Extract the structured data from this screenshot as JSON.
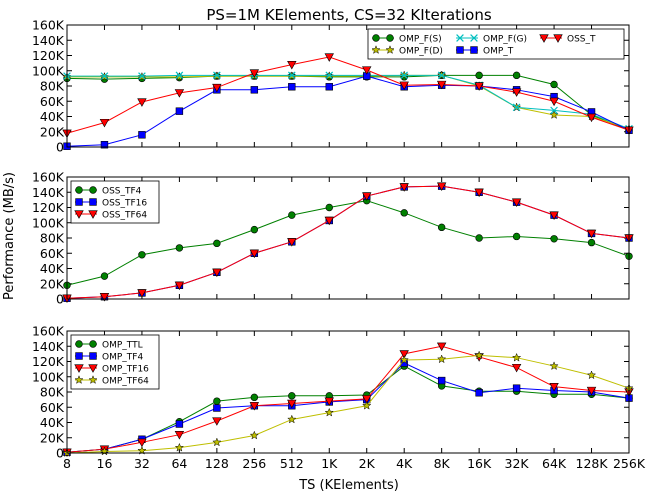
{
  "title": "PS=1M KElements, CS=32 KIterations",
  "xlabel": "TS (KElements)",
  "ylabel": "Performance (MB/s)",
  "x_ticks": [
    "8",
    "16",
    "32",
    "64",
    "128",
    "256",
    "512",
    "1K",
    "2K",
    "4K",
    "8K",
    "16K",
    "32K",
    "64K",
    "128K",
    "256K"
  ],
  "y_ticks": [
    "0",
    "20K",
    "40K",
    "60K",
    "80K",
    "100K",
    "120K",
    "140K",
    "160K"
  ],
  "colors": {
    "green": "#008000",
    "olive": "#bfbf00",
    "cyan": "#00bfbf",
    "blue": "#0000ff",
    "red": "#ff0000"
  },
  "chart_data": [
    {
      "type": "line",
      "x": [
        "8",
        "16",
        "32",
        "64",
        "128",
        "256",
        "512",
        "1K",
        "2K",
        "4K",
        "8K",
        "16K",
        "32K",
        "64K",
        "128K",
        "256K"
      ],
      "ylim": [
        0,
        160000
      ],
      "legend_location": "top-right",
      "legend_columns": 3,
      "series": [
        {
          "name": "OMP_F(S)",
          "color": "#008000",
          "marker": "circle",
          "values": [
            90000,
            89000,
            90000,
            91000,
            93000,
            93000,
            93000,
            92000,
            92000,
            92000,
            94000,
            94000,
            94000,
            82000,
            42000,
            22000
          ]
        },
        {
          "name": "OMP_F(D)",
          "color": "#bfbf00",
          "marker": "star",
          "values": [
            92000,
            92000,
            92000,
            92000,
            93000,
            93000,
            93000,
            93000,
            93000,
            94000,
            94000,
            80000,
            52000,
            42000,
            40000,
            24000
          ]
        },
        {
          "name": "OMP_F(G)",
          "color": "#00bfbf",
          "marker": "x",
          "values": [
            93000,
            93000,
            93000,
            94000,
            94000,
            94000,
            94000,
            94000,
            94000,
            94000,
            94000,
            81000,
            52000,
            48000,
            43000,
            24000
          ]
        },
        {
          "name": "OMP_T",
          "color": "#0000ff",
          "marker": "square",
          "values": [
            1000,
            3000,
            16000,
            47000,
            75000,
            75000,
            79000,
            79000,
            93000,
            79000,
            81000,
            80000,
            75000,
            66000,
            46000,
            22000
          ]
        },
        {
          "name": "OSS_T",
          "color": "#ff0000",
          "marker": "triangle-down",
          "values": [
            18000,
            32000,
            59000,
            71000,
            78000,
            97000,
            108000,
            118000,
            101000,
            81000,
            82000,
            80000,
            72000,
            60000,
            39000,
            22000
          ]
        }
      ]
    },
    {
      "type": "line",
      "x": [
        "8",
        "16",
        "32",
        "64",
        "128",
        "256",
        "512",
        "1K",
        "2K",
        "4K",
        "8K",
        "16K",
        "32K",
        "64K",
        "128K",
        "256K"
      ],
      "ylim": [
        0,
        160000
      ],
      "legend_location": "top-left",
      "legend_columns": 1,
      "series": [
        {
          "name": "OSS_TF4",
          "color": "#008000",
          "marker": "circle",
          "values": [
            18000,
            30000,
            58000,
            67000,
            73000,
            91000,
            110000,
            120000,
            129000,
            113000,
            94000,
            80000,
            82000,
            79000,
            74000,
            56000
          ]
        },
        {
          "name": "OSS_TF16",
          "color": "#0000ff",
          "marker": "square",
          "values": [
            1000,
            3000,
            8000,
            18000,
            35000,
            60000,
            75000,
            103000,
            135000,
            147000,
            148000,
            140000,
            127000,
            110000,
            86000,
            80000
          ]
        },
        {
          "name": "OSS_TF64",
          "color": "#ff0000",
          "marker": "triangle-down",
          "values": [
            1000,
            3000,
            8000,
            18000,
            35000,
            60000,
            75000,
            103000,
            135000,
            147000,
            148000,
            140000,
            127000,
            110000,
            86000,
            80000
          ]
        }
      ]
    },
    {
      "type": "line",
      "x": [
        "8",
        "16",
        "32",
        "64",
        "128",
        "256",
        "512",
        "1K",
        "2K",
        "4K",
        "8K",
        "16K",
        "32K",
        "64K",
        "128K",
        "256K"
      ],
      "ylim": [
        0,
        160000
      ],
      "legend_location": "top-left",
      "legend_columns": 1,
      "series": [
        {
          "name": "OMP_TTL",
          "color": "#008000",
          "marker": "circle",
          "values": [
            1000,
            5000,
            18000,
            41000,
            68000,
            73000,
            75000,
            75000,
            76000,
            114000,
            88000,
            81000,
            81000,
            77000,
            77000,
            72000
          ]
        },
        {
          "name": "OMP_TF4",
          "color": "#0000ff",
          "marker": "square",
          "values": [
            1000,
            5000,
            18000,
            38000,
            59000,
            62000,
            62000,
            67000,
            70000,
            118000,
            95000,
            79000,
            85000,
            82000,
            80000,
            72000
          ]
        },
        {
          "name": "OMP_TF16",
          "color": "#ff0000",
          "marker": "triangle-down",
          "values": [
            1000,
            5000,
            14000,
            24000,
            42000,
            62000,
            65000,
            68000,
            71000,
            130000,
            140000,
            126000,
            112000,
            87000,
            82000,
            80000
          ]
        },
        {
          "name": "OMP_TF64",
          "color": "#bfbf00",
          "marker": "star",
          "values": [
            0,
            2000,
            3000,
            7000,
            14000,
            23000,
            44000,
            53000,
            62000,
            122000,
            123000,
            128000,
            125000,
            114000,
            102000,
            85000
          ]
        }
      ]
    }
  ]
}
